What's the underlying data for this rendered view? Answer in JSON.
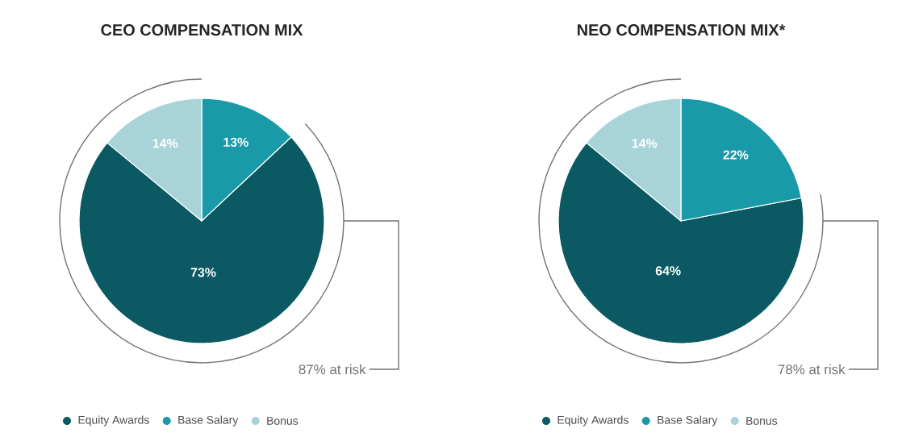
{
  "chart_data": [
    {
      "type": "pie",
      "title": "CEO COMPENSATION MIX",
      "categories": [
        "Equity Awards",
        "Base Salary",
        "Bonus"
      ],
      "values": [
        73,
        13,
        14
      ],
      "value_labels": [
        "73%",
        "13%",
        "14%"
      ],
      "colors": [
        "#0b5963",
        "#1a9aa8",
        "#a8d3d8"
      ],
      "legend": "bottom",
      "annotations": [
        "87% at risk"
      ]
    },
    {
      "type": "pie",
      "title": "NEO COMPENSATION MIX*",
      "categories": [
        "Equity Awards",
        "Base Salary",
        "Bonus"
      ],
      "values": [
        64,
        22,
        14
      ],
      "value_labels": [
        "64%",
        "22%",
        "14%"
      ],
      "colors": [
        "#0b5963",
        "#1a9aa8",
        "#a8d3d8"
      ],
      "legend": "bottom",
      "annotations": [
        "78% at risk"
      ]
    }
  ]
}
